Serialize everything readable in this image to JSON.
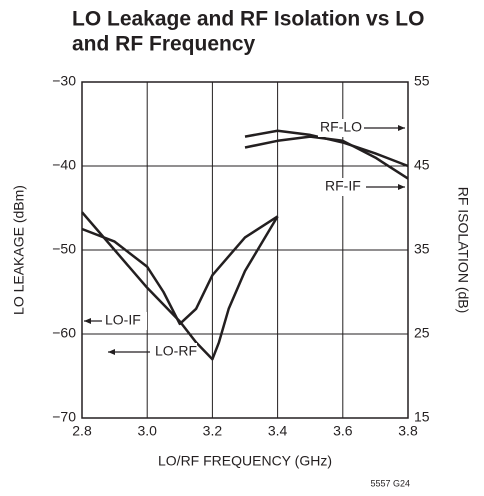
{
  "chart_data": {
    "type": "line",
    "title": [
      "LO Leakage and RF Isolation vs LO",
      "and RF Frequency"
    ],
    "xlabel": "LO/RF FREQUENCY (GHz)",
    "ylabel": "LO LEAKAGE (dBm)",
    "y2label": "RF ISOLATION (dB)",
    "xlim": [
      2.8,
      3.8
    ],
    "xticks": [
      {
        "value": 2.8,
        "label": "2.8"
      },
      {
        "value": 3.0,
        "label": "3.0"
      },
      {
        "value": 3.2,
        "label": "3.2"
      },
      {
        "value": 3.4,
        "label": "3.4"
      },
      {
        "value": 3.6,
        "label": "3.6"
      },
      {
        "value": 3.8,
        "label": "3.8"
      }
    ],
    "ylim": [
      -70,
      -30
    ],
    "yticks": [
      {
        "value": -70,
        "label": "−70"
      },
      {
        "value": -60,
        "label": "−60"
      },
      {
        "value": -50,
        "label": "−50"
      },
      {
        "value": -40,
        "label": "−40"
      },
      {
        "value": -30,
        "label": "−30"
      }
    ],
    "y2lim": [
      15,
      55
    ],
    "y2ticks": [
      15,
      25,
      35,
      45,
      55
    ],
    "grid": true,
    "series": [
      {
        "name": "LO-IF",
        "color": "#231f20",
        "x": [
          2.8,
          2.9,
          3.0,
          3.05,
          3.1,
          3.15,
          3.2,
          3.3,
          3.4
        ],
        "values": [
          -47.5,
          -49,
          -52,
          -55,
          -58.8,
          -57,
          -53,
          -48.5,
          -46
        ]
      },
      {
        "name": "LO-RF",
        "color": "#231f20",
        "x": [
          2.8,
          2.9,
          3.0,
          3.1,
          3.15,
          3.2,
          3.22,
          3.25,
          3.3,
          3.4
        ],
        "values": [
          -45.5,
          -50,
          -54.5,
          -58.5,
          -61,
          -63,
          -61,
          -57,
          -52.5,
          -46
        ]
      },
      {
        "name": "RF-LO",
        "color": "#231f20",
        "axis": "y2",
        "x": [
          3.3,
          3.4,
          3.5,
          3.6,
          3.7,
          3.8
        ],
        "values": [
          48.5,
          49.2,
          48.7,
          47.8,
          46.5,
          45
        ]
      },
      {
        "name": "RF-IF",
        "color": "#231f20",
        "axis": "y2",
        "x": [
          3.3,
          3.4,
          3.5,
          3.6,
          3.7,
          3.8
        ],
        "values": [
          47.2,
          48,
          48.5,
          48,
          46,
          43.5
        ]
      }
    ],
    "footnote": "5557 G24"
  }
}
